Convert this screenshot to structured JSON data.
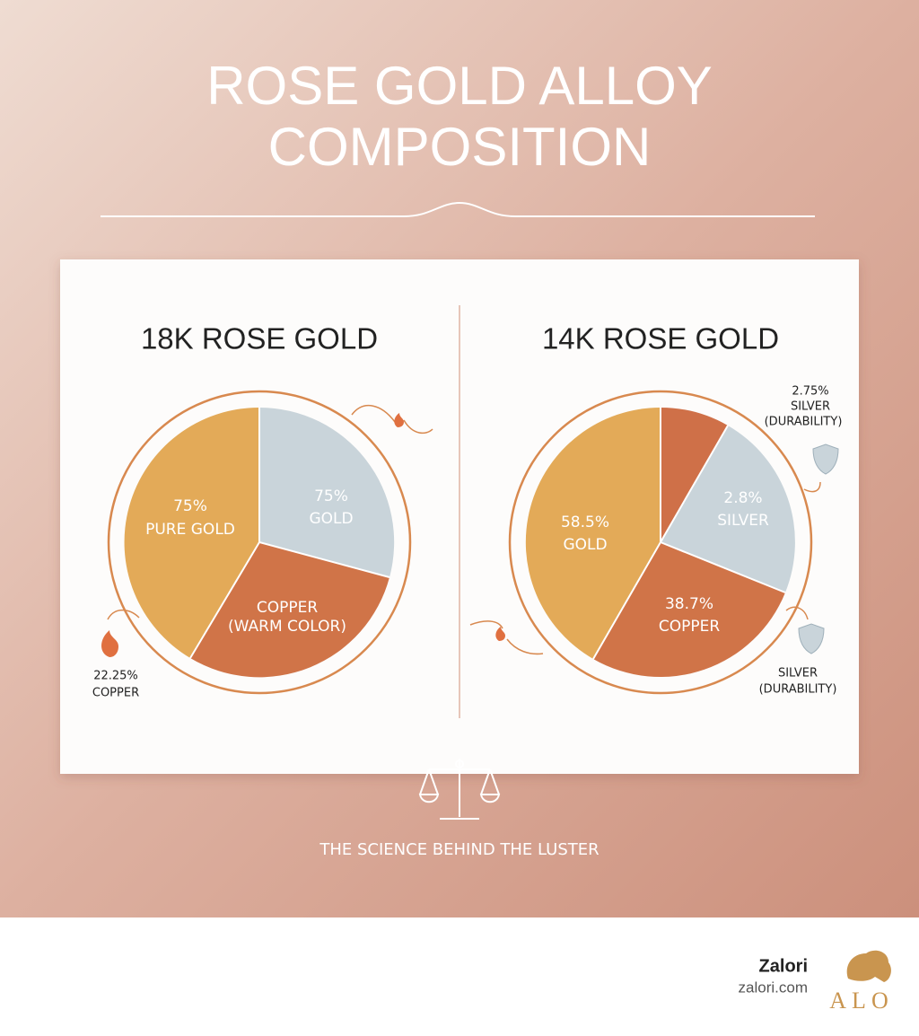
{
  "header": {
    "title": [
      "ROSE GOLD ALLOY",
      "COMPOSITION"
    ]
  },
  "panels": [
    {
      "title": "18K ROSE GOLD",
      "slices": [
        {
          "lines": [
            "75%",
            "PURE GOLD"
          ]
        },
        {
          "lines": [
            "75%",
            "GOLD"
          ]
        },
        {
          "lines": [
            "COPPER",
            "(WARM COLOR)"
          ]
        }
      ],
      "callouts": [
        {
          "lines": [
            "22.25%",
            "COPPER"
          ]
        }
      ]
    },
    {
      "title": "14K ROSE GOLD",
      "slices": [
        {
          "lines": [
            "58.5%",
            "GOLD"
          ]
        },
        {
          "lines": [
            "2.8%",
            "SILVER"
          ]
        },
        {
          "lines": [
            "38.7%",
            "COPPER"
          ]
        }
      ],
      "callouts": [
        {
          "lines": [
            "2.75%",
            "SILVER",
            "(DURABILITY)"
          ]
        },
        {
          "lines": [
            "SILVER",
            "(DURABILITY)"
          ]
        }
      ]
    }
  ],
  "footer": {
    "tagline": "THE SCIENCE BEHIND THE LUSTER",
    "brand": "Zalori",
    "url": "zalori.com",
    "logo": "ALO"
  }
}
